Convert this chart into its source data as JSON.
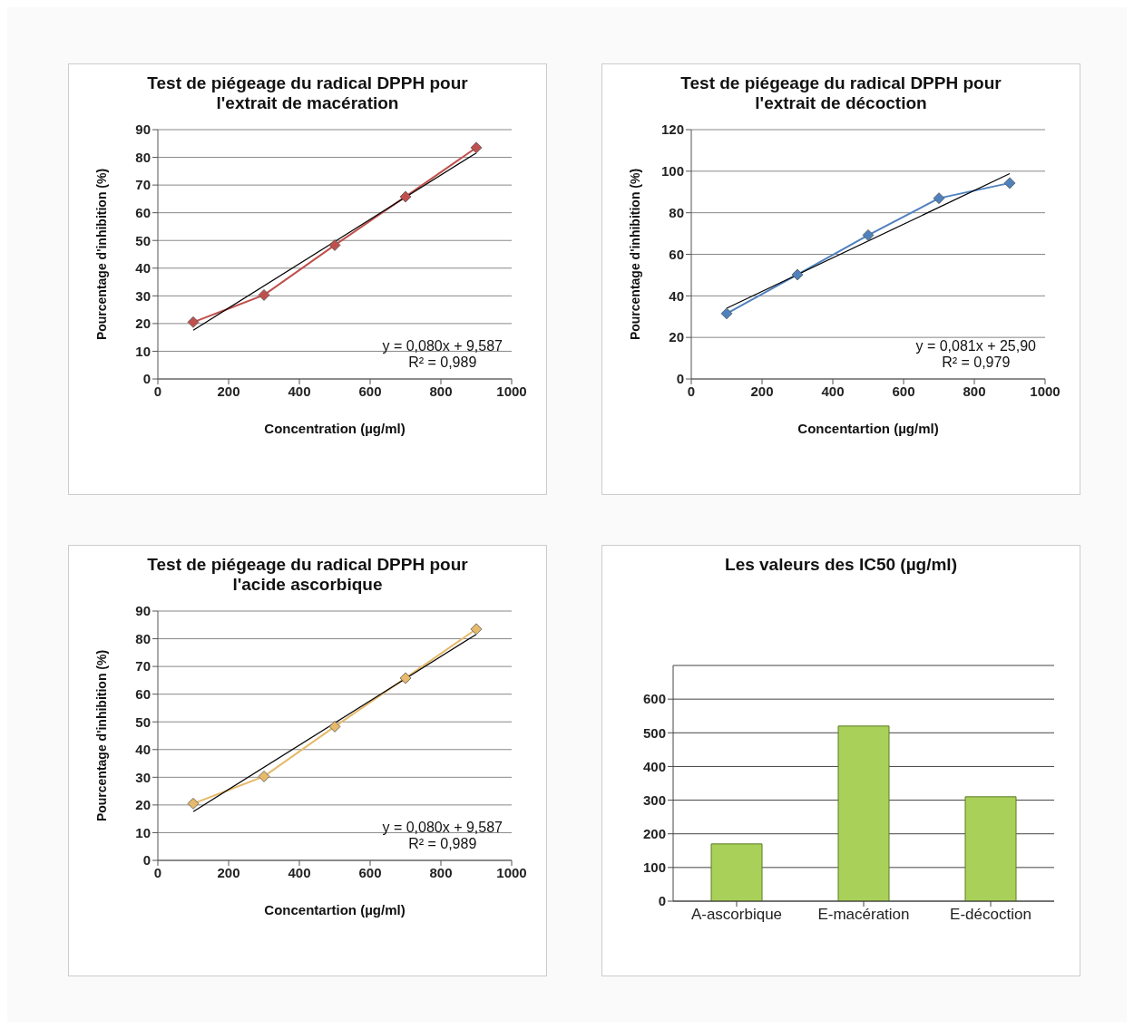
{
  "chart_data": [
    {
      "type": "line",
      "title": "Test de piégeage du radical DPPH pour l'extrait de macération",
      "xlabel": "Concentration (µg/ml)",
      "ylabel": "Pourcentage d'inhibition   (%)",
      "xlim": [
        0,
        1000
      ],
      "xticks": [
        0,
        200,
        400,
        600,
        800,
        1000
      ],
      "ylim": [
        0,
        90
      ],
      "yticks": [
        0,
        10,
        20,
        30,
        40,
        50,
        60,
        70,
        80,
        90
      ],
      "grid": "y",
      "marker": "diamond",
      "line_style": "solid",
      "series": [
        {
          "x": [
            100,
            300,
            500,
            700,
            900
          ],
          "values": [
            20.5,
            30.3,
            48.3,
            65.8,
            83.5
          ],
          "color": "#c0504d"
        },
        {
          "x": [
            100,
            900
          ],
          "values": [
            17.6,
            81.6
          ],
          "color": "#000000",
          "marker": "none"
        }
      ],
      "annotations": [
        "y = 0,080x + 9,587",
        "R² = 0,989"
      ]
    },
    {
      "type": "line",
      "title": "Test de piégeage du radical DPPH pour l'extrait de décoction",
      "xlabel": "Concentartion (µg/ml)",
      "ylabel": "Pourcentage d'inhibition   (%)",
      "xlim": [
        0,
        1000
      ],
      "xticks": [
        0,
        200,
        400,
        600,
        800,
        1000
      ],
      "ylim": [
        0,
        120
      ],
      "yticks": [
        0,
        20,
        40,
        60,
        80,
        100,
        120
      ],
      "grid": "y",
      "marker": "diamond",
      "line_style": "solid",
      "series": [
        {
          "x": [
            100,
            300,
            500,
            700,
            900
          ],
          "values": [
            31.5,
            50.2,
            69.2,
            87,
            94.3
          ],
          "color": "#4f81bd"
        },
        {
          "x": [
            100,
            900
          ],
          "values": [
            34,
            98.8
          ],
          "color": "#000000",
          "marker": "none"
        }
      ],
      "annotations": [
        "y = 0,081x + 25,90",
        "R² = 0,979"
      ]
    },
    {
      "type": "line",
      "title": "Test de piégeage du radical DPPH pour l'acide ascorbique",
      "xlabel": "Concentartion (µg/ml)",
      "ylabel": "Pourcentage d'inhibition   (%)",
      "xlim": [
        0,
        1000
      ],
      "xticks": [
        0,
        200,
        400,
        600,
        800,
        1000
      ],
      "ylim": [
        0,
        90
      ],
      "yticks": [
        0,
        10,
        20,
        30,
        40,
        50,
        60,
        70,
        80,
        90
      ],
      "grid": "y",
      "marker": "diamond",
      "line_style": "solid",
      "series": [
        {
          "x": [
            100,
            300,
            500,
            700,
            900
          ],
          "values": [
            20.5,
            30.3,
            48.3,
            65.8,
            83.5
          ],
          "color": "#e6b96b"
        },
        {
          "x": [
            100,
            900
          ],
          "values": [
            17.6,
            81.6
          ],
          "color": "#000000",
          "marker": "none"
        }
      ],
      "annotations": [
        "y = 0,080x + 9,587",
        "R² = 0,989"
      ]
    },
    {
      "type": "bar",
      "title": "Les valeurs des IC50 (µg/ml)",
      "categories": [
        "A-ascorbique",
        "E-macération",
        "E-décoction"
      ],
      "values": [
        170,
        520,
        310
      ],
      "color": "#a9d15a",
      "ylim": [
        0,
        700
      ],
      "yticks": [
        0,
        100,
        200,
        300,
        400,
        500,
        600
      ],
      "grid": "y"
    }
  ]
}
